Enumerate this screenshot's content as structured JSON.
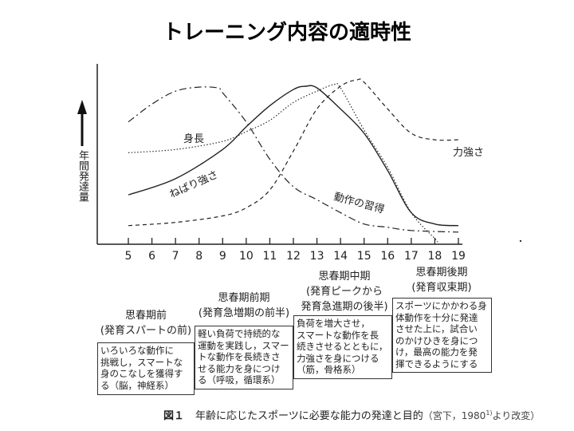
{
  "title": "トレーニング内容の適時性",
  "chart_data": {
    "type": "line",
    "ylabel": "年間発達量",
    "xlim": [
      5,
      19
    ],
    "x_ticks": [
      "5",
      "6",
      "7",
      "8",
      "9",
      "10",
      "11",
      "12",
      "13",
      "14",
      "15",
      "16",
      "17",
      "18",
      "19"
    ],
    "ylim": [
      0,
      100
    ],
    "grid": false,
    "legend": "inline labels",
    "series": [
      {
        "name": "ねばり強さ",
        "style": "solid",
        "x": [
          5,
          7,
          9,
          10,
          11,
          12,
          12.5,
          13,
          14,
          15,
          16,
          17,
          18,
          19
        ],
        "y": [
          29,
          39,
          57,
          71,
          84,
          94,
          96,
          95,
          82,
          67,
          44,
          18,
          11,
          10
        ]
      },
      {
        "name": "身長",
        "style": "dotted",
        "x": [
          5,
          7,
          9,
          10,
          11,
          12,
          13,
          13.7,
          14,
          15,
          16,
          17,
          18,
          18.1
        ],
        "y": [
          55,
          57,
          62,
          68,
          75,
          86,
          93,
          97,
          95,
          69,
          46,
          18,
          2,
          0
        ]
      },
      {
        "name": "動作の習得",
        "style": "dash-dot",
        "x": [
          5,
          6,
          7,
          8,
          8.8,
          9,
          10,
          11,
          12,
          13,
          14,
          15,
          16,
          17,
          19
        ],
        "y": [
          74,
          85,
          93,
          95.5,
          95,
          92,
          74,
          51,
          34,
          26,
          18,
          11,
          9,
          7,
          6
        ]
      },
      {
        "name": "力強さ",
        "style": "dashed",
        "x": [
          5,
          7,
          9,
          10,
          11,
          12,
          13,
          14,
          14.7,
          15,
          16,
          17,
          18,
          19
        ],
        "y": [
          10,
          12,
          16,
          21,
          32,
          56,
          82,
          96,
          100,
          98.5,
          82,
          67,
          63,
          63
        ]
      }
    ]
  },
  "periods": [
    {
      "name": "思春期前",
      "sub": [
        "(発育スパートの前)"
      ],
      "lines": [
        "いろいろな動作に",
        "挑戦し，スマートな",
        "身のこなしを獲得す",
        "る（脳，神経系）"
      ]
    },
    {
      "name": "思春期前期",
      "sub": [
        "(発育急増期の前半)"
      ],
      "lines": [
        "軽い負荷で持続的な",
        "運動を実践し，スマー",
        "トな動作を長続きさ",
        "せる能力を身につけ",
        "る（呼吸，循環系）"
      ]
    },
    {
      "name": "思春期中期",
      "sub": [
        "(発育ピークから",
        "発育急進期の後半)"
      ],
      "lines": [
        "負荷を増大させ，",
        "スマートな動作を長",
        "続きさせるとともに，",
        "力強さを身につける",
        "（筋，骨格系）"
      ]
    },
    {
      "name": "思春期後期",
      "sub": [
        "(発育収束期)"
      ],
      "lines": [
        "スポーツにかかわる身",
        "体動作を十分に発達",
        "させた上に，試合い",
        "のかけひきを身につ",
        "け，最高の能力を発",
        "揮できるようにする"
      ]
    }
  ],
  "caption": {
    "fig": "図１",
    "text": "年齢に応じたスポーツに必要な能力の発達と目的",
    "source_pre": "（宮下，1980",
    "source_sup": "1)",
    "source_post": "より改変）"
  }
}
